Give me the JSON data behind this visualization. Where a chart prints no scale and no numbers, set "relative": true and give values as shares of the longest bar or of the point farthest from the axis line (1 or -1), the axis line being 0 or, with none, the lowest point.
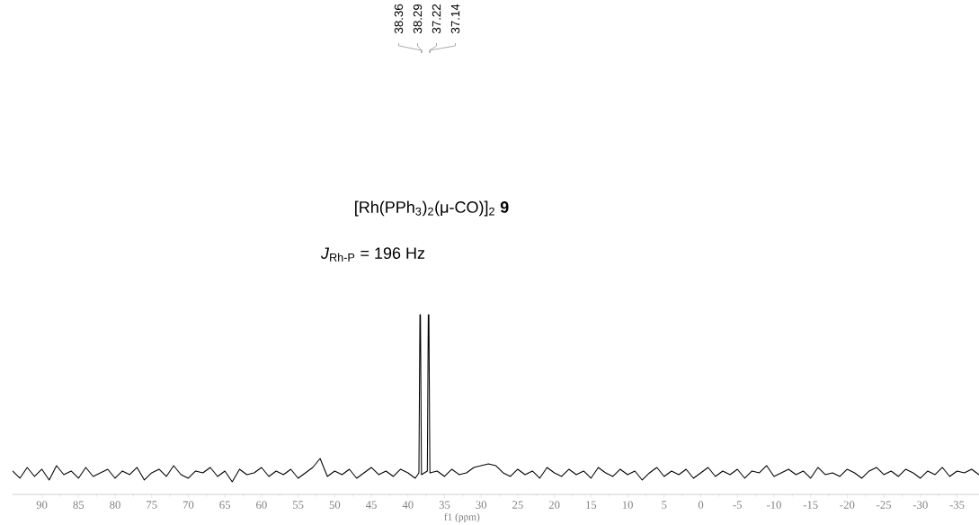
{
  "chart_data": {
    "type": "line",
    "relative": true,
    "xlabel": "f1 (ppm)",
    "xlim": [
      94,
      -38
    ],
    "xticks": [
      90,
      85,
      80,
      75,
      70,
      65,
      60,
      55,
      50,
      45,
      40,
      35,
      30,
      25,
      20,
      15,
      10,
      5,
      0,
      -5,
      -10,
      -15,
      -20,
      -25,
      -30,
      -35
    ],
    "annotations": [
      "[Rh(PPh$_{3}$)$_{2}$(μ-CO)]$_{2}$ **9**",
      "*J*$_{Rh-P}$ = 196 Hz",
      "38.36",
      "38.29",
      "37.22",
      "37.14"
    ],
    "series": [
      {
        "color": "#000000",
        "x": [
          94,
          93,
          92,
          91,
          90,
          89,
          88,
          87,
          86,
          85,
          84,
          83,
          82,
          81,
          80,
          79,
          78,
          77,
          76,
          75,
          74,
          73,
          72,
          71,
          70,
          69,
          68,
          67,
          66,
          65,
          64,
          63,
          62,
          61,
          60,
          59,
          58,
          57,
          56,
          55,
          54,
          53,
          52,
          51,
          50,
          49,
          48,
          47,
          46,
          45,
          44,
          43,
          42,
          41,
          40,
          39,
          38.5,
          38.36,
          38.29,
          38.15,
          37.35,
          37.22,
          37.14,
          37.0,
          36,
          35,
          34,
          33,
          32,
          31,
          30,
          29,
          28,
          27,
          26,
          25,
          24,
          23,
          22,
          21,
          20,
          19,
          18,
          17,
          16,
          15,
          14,
          13,
          12,
          11,
          10,
          9,
          8,
          7,
          6,
          5,
          4,
          3,
          2,
          1,
          0,
          -1,
          -2,
          -3,
          -4,
          -5,
          -6,
          -7,
          -8,
          -9,
          -10,
          -11,
          -12,
          -13,
          -14,
          -15,
          -16,
          -17,
          -18,
          -19,
          -20,
          -21,
          -22,
          -23,
          -24,
          -25,
          -26,
          -27,
          -28,
          -29,
          -30,
          -31,
          -32,
          -33,
          -34,
          -35,
          -36,
          -37,
          -38
        ],
        "values": [
          0.13,
          0.09,
          0.15,
          0.1,
          0.14,
          0.08,
          0.16,
          0.11,
          0.13,
          0.09,
          0.15,
          0.1,
          0.12,
          0.14,
          0.09,
          0.13,
          0.11,
          0.15,
          0.08,
          0.12,
          0.14,
          0.1,
          0.16,
          0.11,
          0.09,
          0.13,
          0.12,
          0.15,
          0.1,
          0.13,
          0.07,
          0.14,
          0.11,
          0.12,
          0.15,
          0.1,
          0.13,
          0.11,
          0.14,
          0.09,
          0.12,
          0.15,
          0.2,
          0.1,
          0.13,
          0.11,
          0.14,
          0.09,
          0.12,
          0.15,
          0.11,
          0.13,
          0.1,
          0.14,
          0.12,
          0.09,
          0.12,
          1.0,
          1.0,
          0.11,
          0.13,
          1.0,
          1.0,
          0.12,
          0.13,
          0.1,
          0.14,
          0.11,
          0.12,
          0.15,
          0.16,
          0.17,
          0.16,
          0.12,
          0.1,
          0.14,
          0.11,
          0.13,
          0.09,
          0.15,
          0.12,
          0.1,
          0.14,
          0.11,
          0.13,
          0.09,
          0.15,
          0.12,
          0.1,
          0.14,
          0.11,
          0.13,
          0.08,
          0.12,
          0.15,
          0.1,
          0.13,
          0.11,
          0.14,
          0.09,
          0.12,
          0.15,
          0.1,
          0.13,
          0.11,
          0.14,
          0.09,
          0.13,
          0.12,
          0.16,
          0.1,
          0.12,
          0.14,
          0.11,
          0.13,
          0.09,
          0.15,
          0.11,
          0.12,
          0.1,
          0.14,
          0.12,
          0.09,
          0.13,
          0.15,
          0.11,
          0.13,
          0.1,
          0.14,
          0.12,
          0.09,
          0.13,
          0.11,
          0.15,
          0.1,
          0.13,
          0.12,
          0.14,
          0.11
        ]
      }
    ]
  }
}
